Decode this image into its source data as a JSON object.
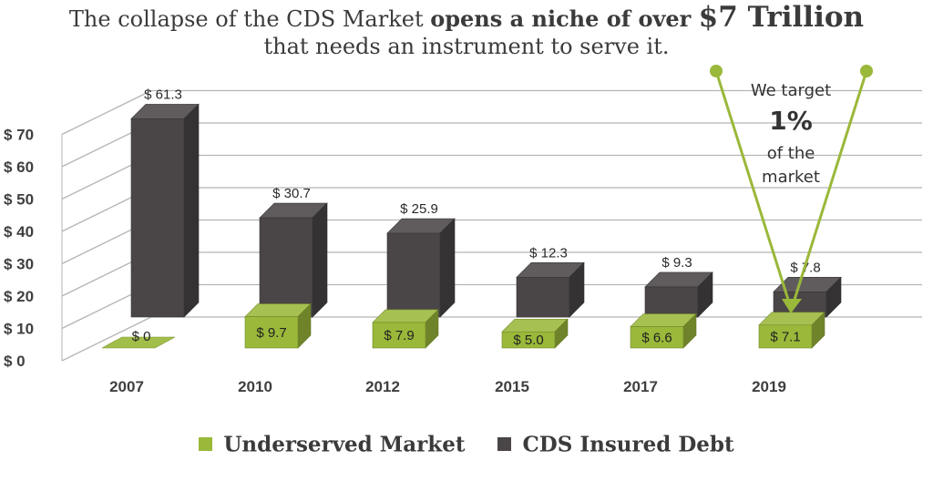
{
  "title": {
    "line1_a": "The collapse of the CDS Market ",
    "line1_b": "opens a niche of over ",
    "line1_c": "$7 Trillion",
    "line2": "that needs an instrument to serve it."
  },
  "annotation": {
    "line1": "We target",
    "line2": "1%",
    "line3": "of the",
    "line4": "market"
  },
  "colors": {
    "underserved": "#9ab83a",
    "cds": "#4a4647",
    "grid": "#b5b5b5"
  },
  "legend": {
    "underserved": "Underserved Market",
    "cds": "CDS Insured Debt"
  },
  "chart_data": {
    "type": "bar",
    "categories": [
      "2007",
      "2010",
      "2012",
      "2015",
      "2017",
      "2019"
    ],
    "series": [
      {
        "name": "Underserved Market",
        "values": [
          0,
          9.7,
          7.9,
          5.0,
          6.6,
          7.1
        ],
        "labels": [
          "$ 0",
          "$ 9.7",
          "$ 7.9",
          "$ 5.0",
          "$ 6.6",
          "$ 7.1"
        ]
      },
      {
        "name": "CDS Insured Debt",
        "values": [
          61.3,
          30.7,
          25.9,
          12.3,
          9.3,
          7.8
        ],
        "labels": [
          "$ 61.3",
          "$ 30.7",
          "$ 25.9",
          "$ 12.3",
          "$ 9.3",
          "$ 7.8"
        ]
      }
    ],
    "y_ticks": [
      "$ 0",
      "$ 10",
      "$ 20",
      "$ 30",
      "$ 40",
      "$ 50",
      "$ 60",
      "$ 70"
    ],
    "ylim": [
      0,
      70
    ],
    "grid": true,
    "legend_position": "bottom"
  }
}
